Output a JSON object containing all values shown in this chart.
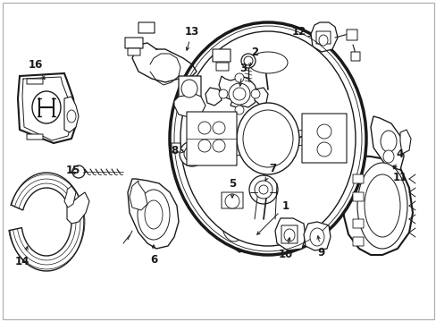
{
  "background_color": "#ffffff",
  "fig_width": 4.89,
  "fig_height": 3.6,
  "dpi": 100,
  "line_color": "#1a1a1a",
  "border_color": "#aaaaaa"
}
